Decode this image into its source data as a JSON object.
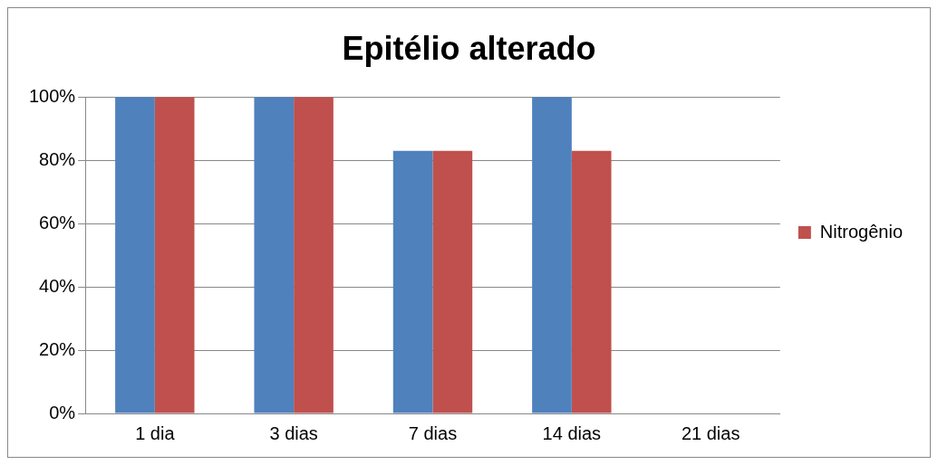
{
  "chart_data": {
    "type": "bar",
    "title": "Epitélio alterado",
    "categories": [
      "1 dia",
      "3 dias",
      "7 dias",
      "14 dias",
      "21 dias"
    ],
    "series": [
      {
        "color": "#4f81bd",
        "values": [
          100,
          100,
          83,
          100,
          0
        ]
      },
      {
        "name": "Nitrogênio",
        "color": "#c0504d",
        "values": [
          100,
          100,
          83,
          83,
          0
        ]
      }
    ],
    "ylim": [
      0,
      100
    ],
    "yticks": [
      {
        "value": 0,
        "label": "0%"
      },
      {
        "value": 20,
        "label": "20%"
      },
      {
        "value": 40,
        "label": "40%"
      },
      {
        "value": 60,
        "label": "60%"
      },
      {
        "value": 80,
        "label": "80%"
      },
      {
        "value": 100,
        "label": "100%"
      }
    ],
    "grid": "y",
    "legend": "right"
  }
}
